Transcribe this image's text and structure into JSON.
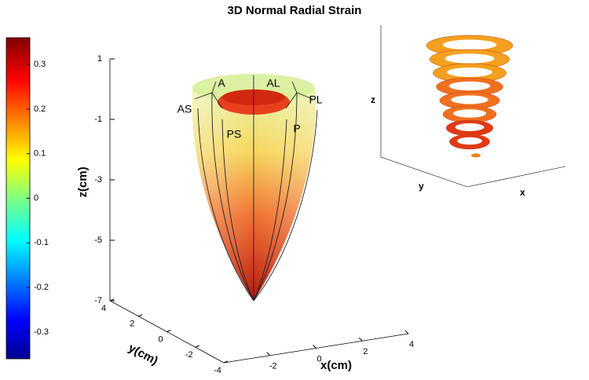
{
  "chart_data": {
    "type": "surface3d",
    "title": "3D Normal Radial Strain",
    "colorbar": {
      "lim": [
        -0.36,
        0.36
      ],
      "ticks": [
        0.3,
        0.2,
        0.1,
        0,
        -0.1,
        -0.2,
        -0.3
      ]
    },
    "zlabel": "z(cm)",
    "ylabel": "y(cm)",
    "xlabel": "x(cm)",
    "zlim": [
      -7,
      1
    ],
    "zticks": [
      1,
      -1,
      -3,
      -5,
      -7
    ],
    "ylim": [
      -4,
      4
    ],
    "yticks": [
      4,
      2,
      0,
      -2,
      -4
    ],
    "xlim": [
      -4,
      4
    ],
    "xticks": [
      -2,
      0,
      2,
      4
    ],
    "segment_labels": [
      "A",
      "AL",
      "AS",
      "PL",
      "PS",
      "P"
    ],
    "inset": {
      "zlabel": "z",
      "ylabel": "y",
      "xlabel": "x"
    }
  }
}
